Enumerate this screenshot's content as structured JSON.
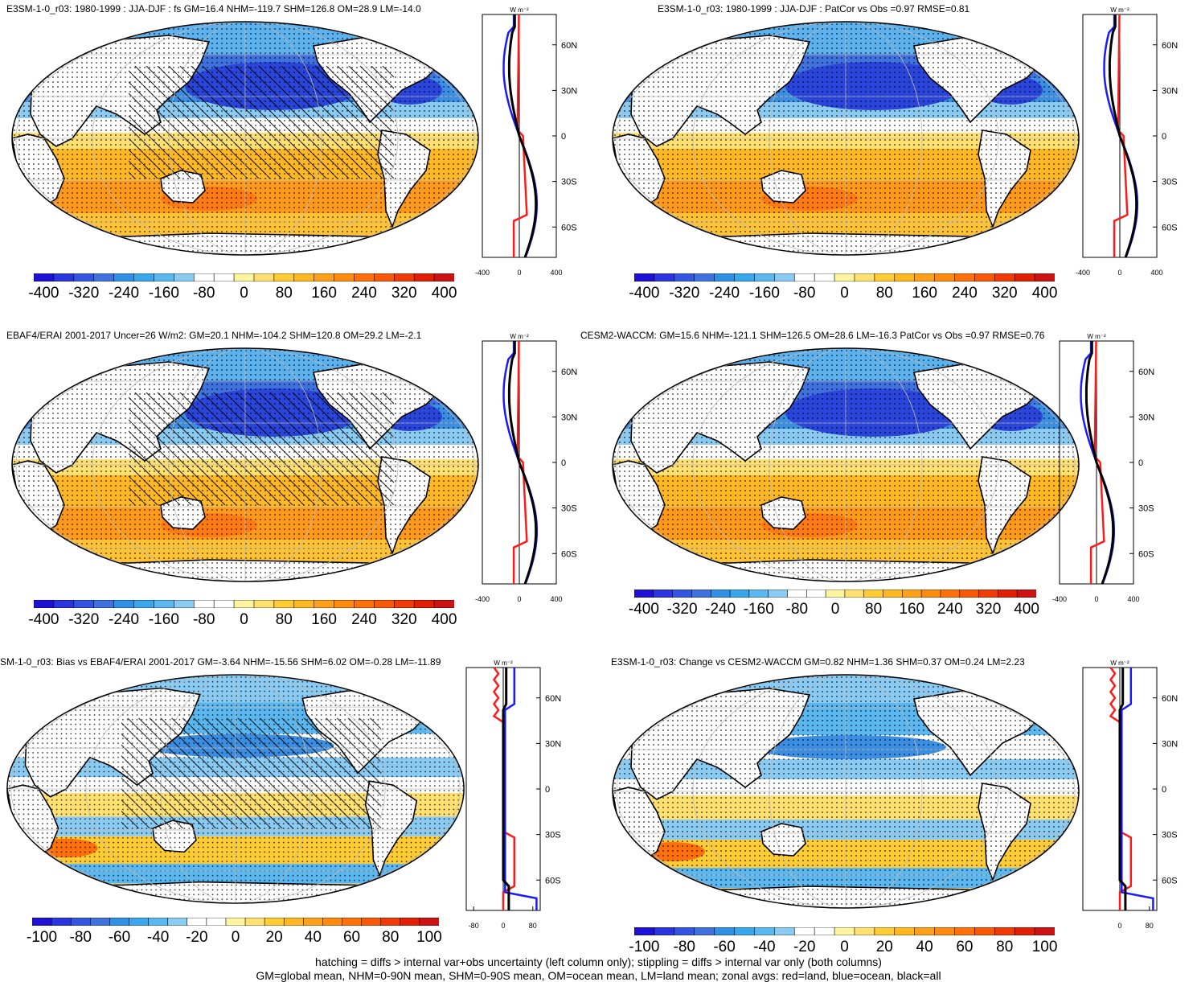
{
  "panels": [
    {
      "id": "p1",
      "title": "E3SM-1-0_r03: 1980-1999 : JJA-DJF : fs GM=16.4 NHM=-119.7 SHM=126.8 OM=28.9 LM=-14.0",
      "hatching": true,
      "zonal_units": "W m⁻²",
      "zonal_x_ticks": [
        "-400",
        "0",
        "400"
      ],
      "lat_labels": [
        "60N",
        "30N",
        "0",
        "30S",
        "60S"
      ],
      "colorbar_labels": [
        "-400",
        "-320",
        "-240",
        "-160",
        "-80",
        "0",
        "80",
        "160",
        "240",
        "320",
        "400"
      ]
    },
    {
      "id": "p2",
      "title": "E3SM-1-0_r03: 1980-1999 : JJA-DJF : PatCor vs Obs =0.97 RMSE=0.81",
      "hatching": false,
      "zonal_units": "W m⁻²",
      "zonal_x_ticks": [
        "-400",
        "0",
        "400"
      ],
      "lat_labels": [
        "60N",
        "30N",
        "0",
        "30S",
        "60S"
      ],
      "colorbar_labels": [
        "-400",
        "-320",
        "-240",
        "-160",
        "-80",
        "0",
        "80",
        "160",
        "240",
        "320",
        "400"
      ]
    },
    {
      "id": "p3",
      "title": "EBAF4/ERAI 2001-2017 Uncer=26 W/m2: GM=20.1 NHM=-104.2 SHM=120.8 OM=29.2 LM=-2.1",
      "hatching": true,
      "zonal_units": "W m⁻²",
      "zonal_x_ticks": [
        "-400",
        "0",
        "400"
      ],
      "lat_labels": [
        "60N",
        "30N",
        "0",
        "30S",
        "60S"
      ],
      "colorbar_labels": [
        "-400",
        "-320",
        "-240",
        "-160",
        "-80",
        "0",
        "80",
        "160",
        "240",
        "320",
        "400"
      ]
    },
    {
      "id": "p4",
      "title": "CESM2-WACCM: GM=15.6 NHM=-121.1 SHM=126.5 OM=28.6 LM=-16.3 PatCor vs Obs =0.97 RMSE=0.76",
      "hatching": false,
      "zonal_units": "W m⁻²",
      "zonal_x_ticks": [
        "-400",
        "0",
        "400"
      ],
      "lat_labels": [
        "60N",
        "30N",
        "0",
        "30S",
        "60S"
      ],
      "colorbar_labels": [
        "-400",
        "-320",
        "-240",
        "-160",
        "-80",
        "0",
        "80",
        "160",
        "240",
        "320",
        "400"
      ]
    },
    {
      "id": "p5",
      "title": "SM-1-0_r03: Bias vs EBAF4/ERAI 2001-2017 GM=-3.64 NHM=-15.56 SHM=6.02 OM=-0.28 LM=-11.89",
      "hatching": true,
      "zonal_units": "W m⁻²",
      "zonal_x_ticks": [
        "-80",
        "0",
        "80"
      ],
      "lat_labels": [
        "60N",
        "30N",
        "0",
        "30S",
        "60S"
      ],
      "colorbar_labels": [
        "-100",
        "-80",
        "-60",
        "-40",
        "-20",
        "0",
        "20",
        "40",
        "60",
        "80",
        "100"
      ]
    },
    {
      "id": "p6",
      "title": "E3SM-1-0_r03: Change vs CESM2-WACCM GM=0.82 NHM=1.36 SHM=0.37 OM=0.24 LM=2.23",
      "hatching": false,
      "zonal_units": "W m⁻²",
      "zonal_x_ticks": [
        "0",
        "80"
      ],
      "lat_labels": [
        "60N",
        "30N",
        "0",
        "30S",
        "60S"
      ],
      "colorbar_labels": [
        "-100",
        "-80",
        "-60",
        "-40",
        "-20",
        "0",
        "20",
        "40",
        "60",
        "80",
        "100"
      ]
    }
  ],
  "colorbar_colors": [
    "#1f10d8",
    "#2a35e0",
    "#3355e2",
    "#3f72de",
    "#2f90e6",
    "#3aa6ec",
    "#5ab7ef",
    "#8acbf3",
    "#ffffff",
    "#ffffff",
    "#fff4a0",
    "#ffe070",
    "#ffcc33",
    "#ffb822",
    "#ffa01a",
    "#ff8a10",
    "#ff700a",
    "#f85808",
    "#f03a08",
    "#e01f05",
    "#cc1212"
  ],
  "zonal_line_colors": {
    "land": "#ff1a1a",
    "ocean": "#1a1aff",
    "all": "#000000"
  },
  "footer": {
    "line1": "hatching = diffs > internal var+obs uncertainty (left column only); stippling = diffs > internal var only (both columns)",
    "line2": "GM=global mean, NHM=0-90N mean, SHM=0-90S mean, OM=ocean mean, LM=land mean; zonal avgs: red=land, blue=ocean, black=all"
  }
}
